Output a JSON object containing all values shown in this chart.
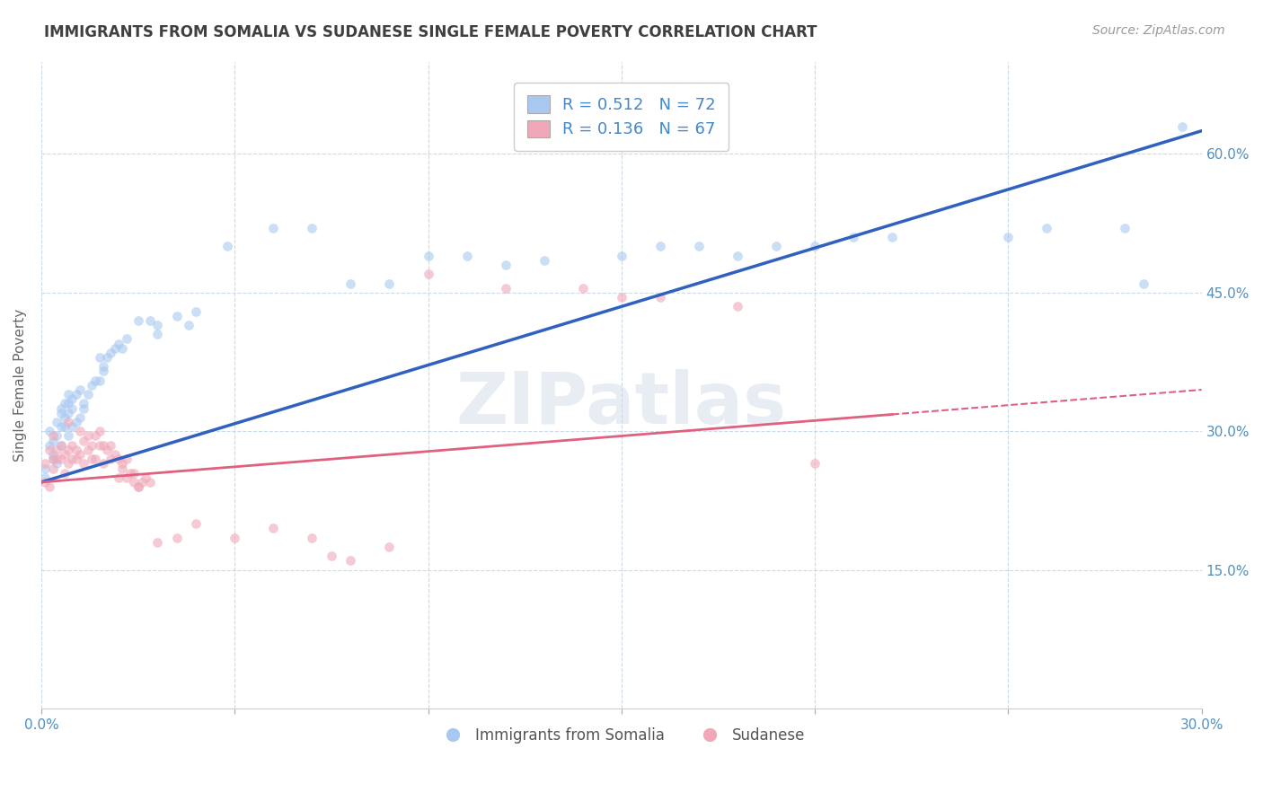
{
  "title": "IMMIGRANTS FROM SOMALIA VS SUDANESE SINGLE FEMALE POVERTY CORRELATION CHART",
  "source": "Source: ZipAtlas.com",
  "ylabel": "Single Female Poverty",
  "xlim": [
    0.0,
    0.3
  ],
  "ylim": [
    0.0,
    0.7
  ],
  "x_tick_labels": [
    "0.0%",
    "",
    "",
    "",
    "",
    "",
    "30.0%"
  ],
  "y_tick_labels_right": [
    "15.0%",
    "30.0%",
    "45.0%",
    "60.0%"
  ],
  "legend_bottom": [
    "Immigrants from Somalia",
    "Sudanese"
  ],
  "somalia_color": "#a8c8f0",
  "sudanese_color": "#f0a8b8",
  "somalia_line_color": "#3060c0",
  "sudanese_line_color": "#e06080",
  "somalia_line": [
    0.0,
    0.245,
    0.3,
    0.625
  ],
  "sudanese_line": [
    0.0,
    0.245,
    0.3,
    0.345
  ],
  "watermark": "ZIPatlas",
  "background_color": "#ffffff",
  "grid_color": "#c0d0e0",
  "title_color": "#404040",
  "legend_text_color": "#4488cc",
  "somalia_scatter": [
    [
      0.001,
      0.26
    ],
    [
      0.001,
      0.25
    ],
    [
      0.002,
      0.285
    ],
    [
      0.002,
      0.3
    ],
    [
      0.003,
      0.29
    ],
    [
      0.003,
      0.27
    ],
    [
      0.003,
      0.275
    ],
    [
      0.004,
      0.295
    ],
    [
      0.004,
      0.31
    ],
    [
      0.004,
      0.265
    ],
    [
      0.005,
      0.285
    ],
    [
      0.005,
      0.305
    ],
    [
      0.005,
      0.325
    ],
    [
      0.005,
      0.32
    ],
    [
      0.006,
      0.305
    ],
    [
      0.006,
      0.315
    ],
    [
      0.006,
      0.33
    ],
    [
      0.007,
      0.295
    ],
    [
      0.007,
      0.33
    ],
    [
      0.007,
      0.32
    ],
    [
      0.007,
      0.34
    ],
    [
      0.008,
      0.305
    ],
    [
      0.008,
      0.325
    ],
    [
      0.008,
      0.335
    ],
    [
      0.009,
      0.31
    ],
    [
      0.009,
      0.34
    ],
    [
      0.01,
      0.315
    ],
    [
      0.01,
      0.345
    ],
    [
      0.011,
      0.325
    ],
    [
      0.011,
      0.33
    ],
    [
      0.012,
      0.34
    ],
    [
      0.013,
      0.35
    ],
    [
      0.014,
      0.355
    ],
    [
      0.015,
      0.355
    ],
    [
      0.015,
      0.38
    ],
    [
      0.016,
      0.365
    ],
    [
      0.016,
      0.37
    ],
    [
      0.017,
      0.38
    ],
    [
      0.018,
      0.385
    ],
    [
      0.019,
      0.39
    ],
    [
      0.02,
      0.395
    ],
    [
      0.021,
      0.39
    ],
    [
      0.022,
      0.4
    ],
    [
      0.025,
      0.42
    ],
    [
      0.028,
      0.42
    ],
    [
      0.03,
      0.405
    ],
    [
      0.03,
      0.415
    ],
    [
      0.035,
      0.425
    ],
    [
      0.038,
      0.415
    ],
    [
      0.04,
      0.43
    ],
    [
      0.048,
      0.5
    ],
    [
      0.06,
      0.52
    ],
    [
      0.07,
      0.52
    ],
    [
      0.08,
      0.46
    ],
    [
      0.09,
      0.46
    ],
    [
      0.1,
      0.49
    ],
    [
      0.11,
      0.49
    ],
    [
      0.12,
      0.48
    ],
    [
      0.13,
      0.485
    ],
    [
      0.15,
      0.49
    ],
    [
      0.16,
      0.5
    ],
    [
      0.17,
      0.5
    ],
    [
      0.18,
      0.49
    ],
    [
      0.19,
      0.5
    ],
    [
      0.2,
      0.5
    ],
    [
      0.21,
      0.51
    ],
    [
      0.22,
      0.51
    ],
    [
      0.25,
      0.51
    ],
    [
      0.26,
      0.52
    ],
    [
      0.28,
      0.52
    ],
    [
      0.285,
      0.46
    ],
    [
      0.295,
      0.63
    ]
  ],
  "sudanese_scatter": [
    [
      0.001,
      0.265
    ],
    [
      0.001,
      0.245
    ],
    [
      0.002,
      0.28
    ],
    [
      0.002,
      0.24
    ],
    [
      0.003,
      0.27
    ],
    [
      0.003,
      0.26
    ],
    [
      0.003,
      0.295
    ],
    [
      0.004,
      0.27
    ],
    [
      0.004,
      0.28
    ],
    [
      0.005,
      0.285
    ],
    [
      0.005,
      0.27
    ],
    [
      0.006,
      0.275
    ],
    [
      0.006,
      0.255
    ],
    [
      0.007,
      0.265
    ],
    [
      0.007,
      0.28
    ],
    [
      0.007,
      0.31
    ],
    [
      0.008,
      0.27
    ],
    [
      0.008,
      0.285
    ],
    [
      0.009,
      0.27
    ],
    [
      0.009,
      0.28
    ],
    [
      0.01,
      0.3
    ],
    [
      0.01,
      0.275
    ],
    [
      0.011,
      0.29
    ],
    [
      0.011,
      0.265
    ],
    [
      0.012,
      0.28
    ],
    [
      0.012,
      0.295
    ],
    [
      0.013,
      0.285
    ],
    [
      0.013,
      0.27
    ],
    [
      0.014,
      0.27
    ],
    [
      0.014,
      0.295
    ],
    [
      0.015,
      0.285
    ],
    [
      0.015,
      0.3
    ],
    [
      0.016,
      0.285
    ],
    [
      0.016,
      0.265
    ],
    [
      0.017,
      0.28
    ],
    [
      0.018,
      0.27
    ],
    [
      0.018,
      0.285
    ],
    [
      0.019,
      0.275
    ],
    [
      0.02,
      0.27
    ],
    [
      0.02,
      0.25
    ],
    [
      0.021,
      0.265
    ],
    [
      0.021,
      0.26
    ],
    [
      0.022,
      0.25
    ],
    [
      0.022,
      0.27
    ],
    [
      0.023,
      0.255
    ],
    [
      0.024,
      0.245
    ],
    [
      0.024,
      0.255
    ],
    [
      0.025,
      0.24
    ],
    [
      0.025,
      0.24
    ],
    [
      0.026,
      0.245
    ],
    [
      0.027,
      0.25
    ],
    [
      0.028,
      0.245
    ],
    [
      0.03,
      0.18
    ],
    [
      0.035,
      0.185
    ],
    [
      0.04,
      0.2
    ],
    [
      0.05,
      0.185
    ],
    [
      0.06,
      0.195
    ],
    [
      0.07,
      0.185
    ],
    [
      0.075,
      0.165
    ],
    [
      0.08,
      0.16
    ],
    [
      0.09,
      0.175
    ],
    [
      0.1,
      0.47
    ],
    [
      0.12,
      0.455
    ],
    [
      0.14,
      0.455
    ],
    [
      0.15,
      0.445
    ],
    [
      0.16,
      0.445
    ],
    [
      0.18,
      0.435
    ],
    [
      0.2,
      0.265
    ]
  ]
}
